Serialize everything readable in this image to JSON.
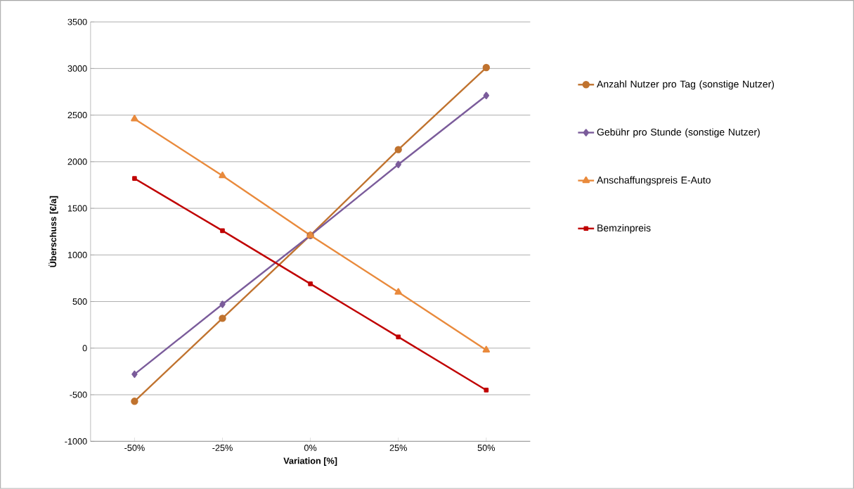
{
  "chart_data": {
    "type": "line",
    "xlabel": "Variation [%]",
    "ylabel": "Überschuss [€/a]",
    "categories": [
      "-50%",
      "-25%",
      "0%",
      "25%",
      "50%"
    ],
    "series": [
      {
        "name": "Anzahl Nutzer pro Tag (sonstige Nutzer)",
        "color": "#c0732f",
        "marker": "circle",
        "values": [
          -570,
          320,
          1210,
          2130,
          3010
        ]
      },
      {
        "name": "Gebühr pro Stunde (sonstige Nutzer)",
        "color": "#7b5c9b",
        "marker": "diamond",
        "values": [
          -280,
          470,
          1210,
          1970,
          2710
        ]
      },
      {
        "name": "Anschaffungspreis E-Auto",
        "color": "#e98a3c",
        "marker": "triangle",
        "values": [
          2460,
          1850,
          1210,
          600,
          -20
        ]
      },
      {
        "name": "Bemzinpreis",
        "color": "#c00000",
        "marker": "square",
        "values": [
          1820,
          1260,
          690,
          120,
          -450
        ]
      }
    ],
    "ylim": [
      -1000,
      3500
    ],
    "yticks": [
      -1000,
      -500,
      0,
      500,
      1000,
      1500,
      2000,
      2500,
      3000,
      3500
    ],
    "grid": "y",
    "legend": "right"
  }
}
